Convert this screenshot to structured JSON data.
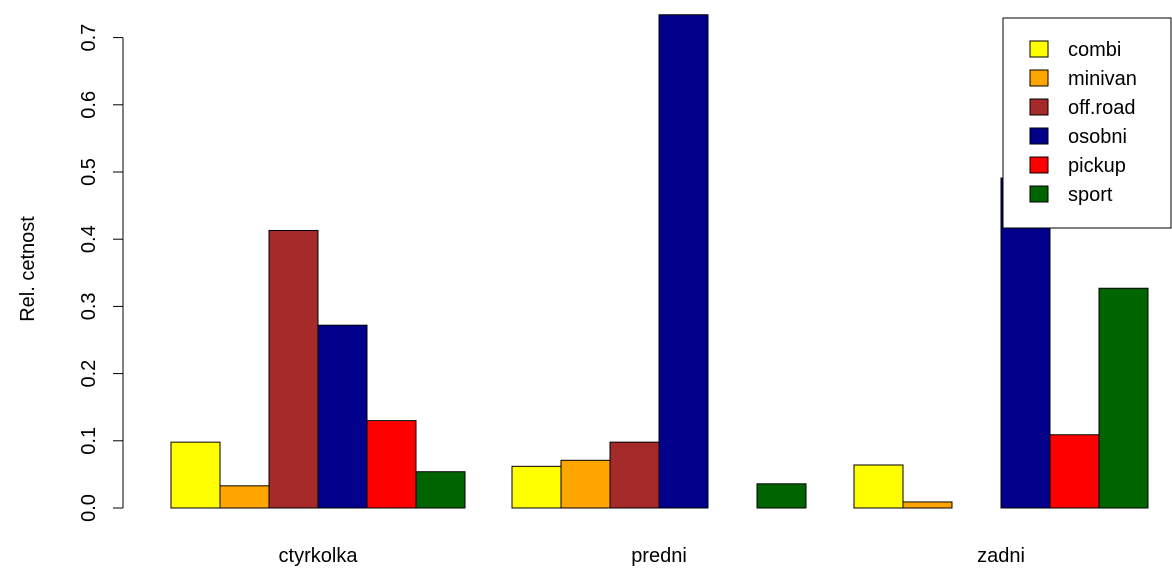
{
  "chart_data": {
    "type": "bar",
    "categories": [
      "ctyrkolka",
      "predni",
      "zadni"
    ],
    "series": [
      {
        "name": "combi",
        "color": "#FFFF00",
        "values": [
          0.098,
          0.062,
          0.064
        ]
      },
      {
        "name": "minivan",
        "color": "#FFA500",
        "values": [
          0.033,
          0.071,
          0.009
        ]
      },
      {
        "name": "off.road",
        "color": "#A52A2A",
        "values": [
          0.413,
          0.098,
          0.0
        ]
      },
      {
        "name": "osobni",
        "color": "#00008B",
        "values": [
          0.272,
          0.734,
          0.491
        ]
      },
      {
        "name": "pickup",
        "color": "#FF0000",
        "values": [
          0.13,
          0.0,
          0.109
        ]
      },
      {
        "name": "sport",
        "color": "#006400",
        "values": [
          0.054,
          0.036,
          0.327
        ]
      }
    ],
    "title": "",
    "xlabel": "",
    "ylabel": "Rel. cetnost",
    "ylim": [
      0,
      0.7
    ],
    "yticks": [
      "0.0",
      "0.1",
      "0.2",
      "0.3",
      "0.4",
      "0.5",
      "0.6",
      "0.7"
    ],
    "grid": false,
    "legend_position": "top-right"
  }
}
